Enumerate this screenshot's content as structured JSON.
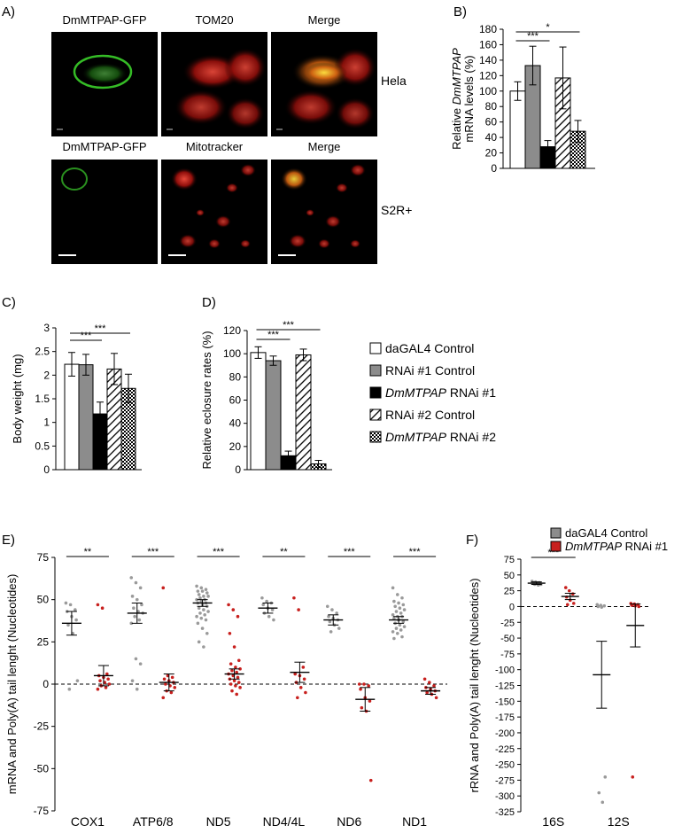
{
  "panel_labels": {
    "A": "A)",
    "B": "B)",
    "C": "C)",
    "D": "D)",
    "E": "E)",
    "F": "F)"
  },
  "microscopy": {
    "rows": [
      {
        "labels": [
          "DmMTPAP-GFP",
          "TOM20",
          "Merge"
        ],
        "cell_line": "Hela",
        "channels": [
          "green",
          "red",
          "merge"
        ]
      },
      {
        "labels": [
          "DmMTPAP-GFP",
          "Mitotracker",
          "Merge"
        ],
        "cell_line": "S2R+",
        "channels": [
          "green",
          "red",
          "merge"
        ]
      }
    ]
  },
  "legend": {
    "items": [
      {
        "label": "daGAL4 Control",
        "italic_part": "",
        "fill": "white"
      },
      {
        "label": "RNAi #1 Control",
        "italic_part": "",
        "fill": "gray"
      },
      {
        "label": "RNAi #1",
        "italic_part": "DmMTPAP",
        "fill": "black"
      },
      {
        "label": "RNAi #2 Control",
        "italic_part": "",
        "fill": "hatch"
      },
      {
        "label": "RNAi #2",
        "italic_part": "DmMTPAP",
        "fill": "checker"
      }
    ]
  },
  "chart_data": [
    {
      "panel": "B",
      "type": "bar",
      "ylabel_line1": "Relative",
      "ylabel_italic": "DmMTPAP",
      "ylabel_line2": "mRNA levels (%)",
      "ylim": [
        0,
        180
      ],
      "yticks": [
        0,
        20,
        40,
        60,
        80,
        100,
        120,
        140,
        160,
        180
      ],
      "values": [
        100,
        133,
        28,
        117,
        48
      ],
      "errors": [
        12,
        25,
        8,
        40,
        14
      ],
      "fills": [
        "white",
        "gray",
        "black",
        "hatch",
        "checker"
      ],
      "significance": [
        {
          "from": 0,
          "to": 2,
          "label": "***"
        },
        {
          "from": 0,
          "to": 4,
          "label": "*"
        }
      ]
    },
    {
      "panel": "C",
      "type": "bar",
      "ylabel": "Body weight (mg)",
      "ylim": [
        0,
        3
      ],
      "yticks": [
        0,
        0.5,
        1,
        1.5,
        2,
        2.5,
        3
      ],
      "ytick_labels": [
        "0",
        "0.5",
        "1",
        "1.5",
        "2",
        "2.5",
        "3"
      ],
      "values": [
        2.23,
        2.22,
        1.18,
        2.13,
        1.72
      ],
      "errors": [
        0.25,
        0.22,
        0.25,
        0.33,
        0.3
      ],
      "fills": [
        "white",
        "gray",
        "black",
        "hatch",
        "checker"
      ],
      "significance": [
        {
          "from": 0,
          "to": 2,
          "label": "***"
        },
        {
          "from": 0,
          "to": 4,
          "label": "***"
        }
      ]
    },
    {
      "panel": "D",
      "type": "bar",
      "ylabel": "Relative eclosure rates (%)",
      "ylim": [
        0,
        120
      ],
      "yticks": [
        0,
        20,
        40,
        60,
        80,
        100,
        120
      ],
      "values": [
        101,
        94,
        12,
        99,
        5
      ],
      "errors": [
        5,
        4,
        4,
        5,
        3
      ],
      "fills": [
        "white",
        "gray",
        "black",
        "hatch",
        "checker"
      ],
      "significance": [
        {
          "from": 0,
          "to": 2,
          "label": "***"
        },
        {
          "from": 0,
          "to": 4,
          "label": "***"
        }
      ]
    },
    {
      "panel": "E",
      "type": "scatter",
      "ylabel": "mRNA and Poly(A) tail lenght (Nucleotides)",
      "ylim": [
        -75,
        75
      ],
      "yticks": [
        -75,
        -50,
        -25,
        0,
        25,
        50,
        75
      ],
      "categories": [
        "COX1",
        "ATP6/8",
        "ND5",
        "ND4/4L",
        "ND6",
        "ND1"
      ],
      "significance": [
        "**",
        "***",
        "***",
        "**",
        "***",
        "***"
      ],
      "groups": [
        {
          "control": {
            "mean": 36,
            "err": 7,
            "points": [
              48,
              47,
              44,
              43,
              40,
              38,
              35,
              30,
              2,
              -3
            ]
          },
          "rnai": {
            "mean": 5,
            "err": 6,
            "points": [
              47,
              45,
              6,
              5,
              4,
              3,
              2,
              1,
              0,
              -1,
              -2,
              -3
            ]
          }
        },
        {
          "control": {
            "mean": 42,
            "err": 6,
            "points": [
              63,
              60,
              57,
              52,
              50,
              47,
              45,
              43,
              42,
              40,
              38,
              36,
              15,
              12,
              2,
              -3
            ]
          },
          "rnai": {
            "mean": 1,
            "err": 5,
            "points": [
              57,
              5,
              4,
              3,
              2,
              1,
              0,
              -1,
              -2,
              -4,
              -5,
              -8
            ]
          }
        },
        {
          "control": {
            "mean": 48,
            "err": 2,
            "points": [
              58,
              57,
              56,
              55,
              55,
              54,
              53,
              52,
              52,
              51,
              50,
              50,
              49,
              48,
              48,
              47,
              46,
              45,
              44,
              43,
              42,
              41,
              40,
              39,
              38,
              36,
              33,
              30,
              25,
              22
            ]
          },
          "rnai": {
            "mean": 6,
            "err": 3,
            "points": [
              47,
              44,
              40,
              30,
              22,
              14,
              12,
              10,
              9,
              8,
              7,
              6,
              5,
              4,
              3,
              2,
              1,
              0,
              -1,
              -2,
              -4,
              -6
            ]
          }
        },
        {
          "control": {
            "mean": 45,
            "err": 3,
            "points": [
              51,
              49,
              48,
              47,
              45,
              44,
              42,
              40,
              38
            ]
          },
          "rnai": {
            "mean": 7,
            "err": 6,
            "points": [
              51,
              44,
              10,
              6,
              5,
              3,
              1,
              -2,
              -5,
              -8
            ]
          }
        },
        {
          "control": {
            "mean": 38,
            "err": 3,
            "points": [
              46,
              44,
              42,
              40,
              39,
              38,
              37,
              35,
              33,
              31
            ]
          },
          "rnai": {
            "mean": -9,
            "err": 7,
            "points": [
              0,
              0,
              -1,
              -3,
              -8,
              -10,
              -14,
              -16,
              -57
            ]
          }
        },
        {
          "control": {
            "mean": 38,
            "err": 2,
            "points": [
              57,
              53,
              51,
              49,
              48,
              47,
              46,
              45,
              44,
              43,
              42,
              41,
              40,
              40,
              39,
              38,
              37,
              36,
              35,
              34,
              33,
              32,
              31,
              30,
              28,
              27
            ]
          },
          "rnai": {
            "mean": -4,
            "err": 2,
            "points": [
              3,
              1,
              -1,
              -2,
              -3,
              -4,
              -5,
              -6,
              -8
            ]
          }
        }
      ]
    },
    {
      "panel": "F",
      "type": "scatter",
      "ylabel": "rRNA and Poly(A) tail lenght (Nucleotides)",
      "ylim": [
        -325,
        75
      ],
      "yticks": [
        75,
        50,
        25,
        0,
        -25,
        -50,
        -75,
        -100,
        -125,
        -150,
        -175,
        -200,
        -225,
        -250,
        -275,
        -300,
        -325
      ],
      "categories": [
        "16S",
        "12S"
      ],
      "significance": [
        "***",
        ""
      ],
      "groups": [
        {
          "control": {
            "mean": 37,
            "err": 2,
            "points": [
              40,
              39,
              38,
              38,
              37,
              37,
              36,
              36,
              35,
              35,
              34
            ]
          },
          "rnai": {
            "mean": 16,
            "err": 5,
            "points": [
              30,
              25,
              20,
              15,
              10,
              5,
              3
            ]
          }
        },
        {
          "control": {
            "mean": -108,
            "err": 53,
            "points": [
              3,
              2,
              1,
              0,
              -1,
              -270,
              -295,
              -310
            ]
          },
          "rnai": {
            "mean": -30,
            "err": 34,
            "points": [
              5,
              4,
              3,
              2,
              1,
              0,
              -270
            ]
          }
        }
      ],
      "legend": [
        {
          "label": "daGAL4 Control",
          "italic_part": "",
          "color": "#8c8c8c"
        },
        {
          "label": "RNAi #1",
          "italic_part": "DmMTPAP",
          "color": "#c8201e"
        }
      ]
    }
  ],
  "colors": {
    "control_dot": "#9a9a9a",
    "rnai_dot": "#c8201e",
    "gray_bar": "#8c8c8c"
  }
}
